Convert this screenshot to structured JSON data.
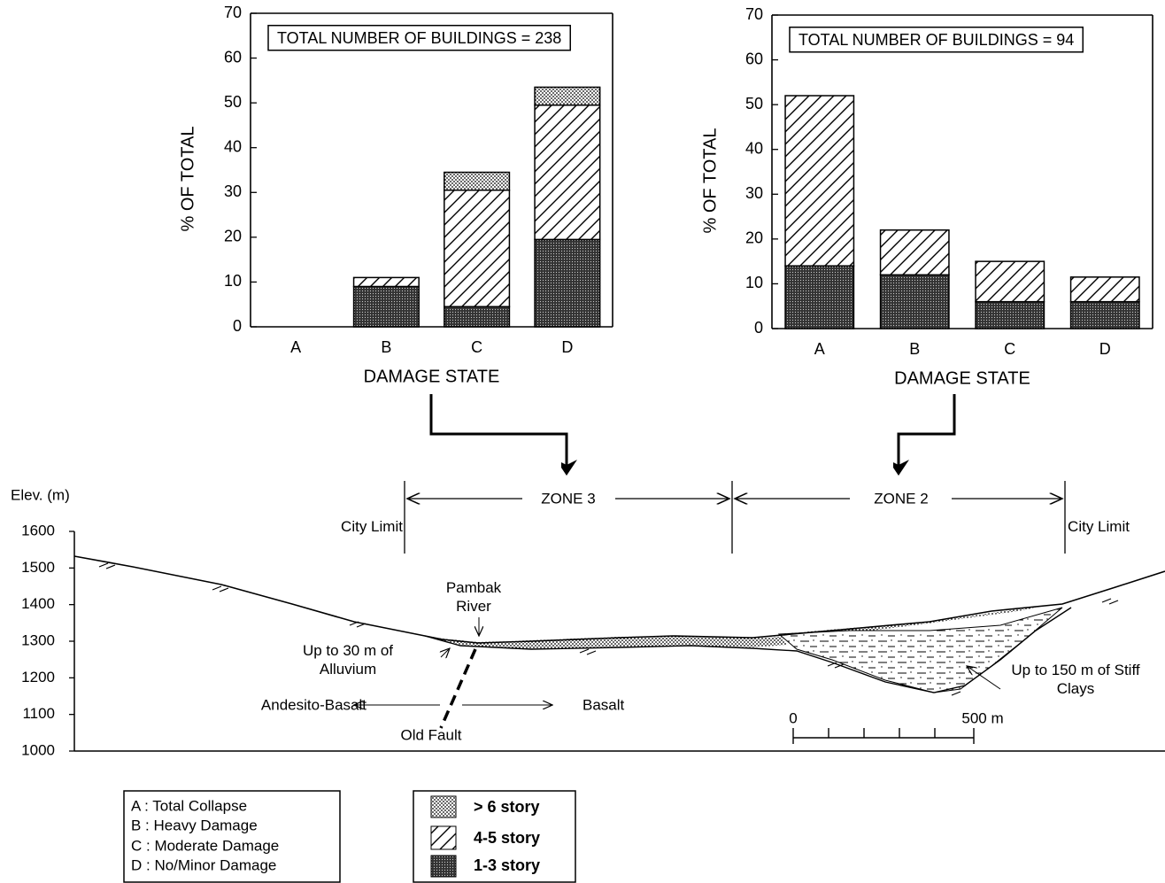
{
  "chart_data": [
    {
      "type": "bar",
      "stacked": true,
      "title": "TOTAL NUMBER OF BUILDINGS = 238",
      "y_label": "% OF TOTAL",
      "x_label": "DAMAGE STATE",
      "categories": [
        "A",
        "B",
        "C",
        "D"
      ],
      "series": [
        {
          "name": "1-3 story",
          "color": "#000000",
          "pattern": "dense",
          "values": [
            0,
            9,
            4.5,
            19.5
          ]
        },
        {
          "name": "4-5 story",
          "color": "#000000",
          "pattern": "hatch",
          "values": [
            0,
            2,
            26,
            30
          ]
        },
        {
          "name": "> 6 story",
          "color": "#000000",
          "pattern": "dots",
          "values": [
            0,
            0,
            4,
            4
          ]
        }
      ],
      "ylim": [
        0,
        70
      ],
      "yticks": [
        0,
        10,
        20,
        30,
        40,
        50,
        60,
        70
      ]
    },
    {
      "type": "bar",
      "stacked": true,
      "title": "TOTAL NUMBER OF BUILDINGS = 94",
      "y_label": "% OF TOTAL",
      "x_label": "DAMAGE STATE",
      "categories": [
        "A",
        "B",
        "C",
        "D"
      ],
      "series": [
        {
          "color": "#000000",
          "pattern": "dense",
          "values": [
            14,
            12,
            6,
            6
          ]
        },
        {
          "color": "#000000",
          "pattern": "hatch",
          "values": [
            38,
            10,
            9,
            5.5
          ]
        }
      ],
      "ylim": [
        0,
        70
      ],
      "yticks": [
        0,
        10,
        20,
        30,
        40,
        50,
        60,
        70
      ]
    }
  ],
  "legend_damage": [
    "A : Total Collapse",
    "B : Heavy Damage",
    "C : Moderate Damage",
    "D : No/Minor Damage"
  ],
  "cross_section": {
    "y_label": "Elev. (m)",
    "ylim": [
      1000,
      1600
    ],
    "yticks": [
      1000,
      1100,
      1200,
      1300,
      1400,
      1500,
      1600
    ],
    "zones": [
      "ZONE 3",
      "ZONE 2"
    ],
    "city_limits": [
      "City Limit",
      "City Limit"
    ],
    "labels": {
      "river": "Pambak River",
      "alluvium": "Up to 30 m of Alluvium",
      "andesite": "Andesito-Basalt",
      "basalt": "Basalt",
      "fault": "Old Fault",
      "clays": "Up to 150 m of Stiff Clays"
    },
    "scale": [
      "0",
      "500 m"
    ]
  }
}
